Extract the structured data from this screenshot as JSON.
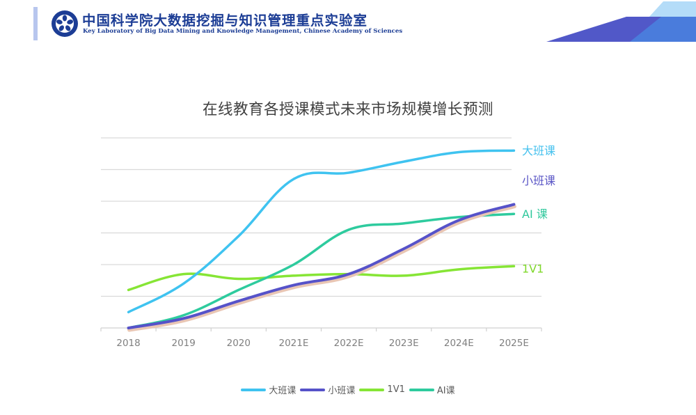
{
  "header": {
    "org_name_cn": "中国科学院大数据挖掘与知识管理重点实验室",
    "org_name_en": "Key Laboratory of Big Data Mining and Knowledge Management, Chinese Academy of Sciences",
    "logo_icon": "cas-seal-icon",
    "brand_color": "#1c3d95"
  },
  "chart_data": {
    "type": "line",
    "title": "在线教育各授课模式未来市场规模增长预测",
    "xlabel": "",
    "ylabel": "",
    "categories": [
      "2018",
      "2019",
      "2020",
      "2021E",
      "2022E",
      "2023E",
      "2024E",
      "2025E"
    ],
    "ylim": [
      0,
      6
    ],
    "grid": true,
    "y_tick_labels_shown": false,
    "legend_position": "bottom",
    "series": [
      {
        "name": "大班课",
        "end_label": "大班课",
        "color": "#3fc3f0",
        "label_color": "#45c1ee",
        "values": [
          0.5,
          1.4,
          2.9,
          4.7,
          4.9,
          5.25,
          5.55,
          5.6
        ]
      },
      {
        "name": "小班课",
        "end_label": "小班课",
        "color": "#5652c9",
        "label_color": "#5a56c6",
        "values": [
          0.0,
          0.3,
          0.85,
          1.35,
          1.7,
          2.5,
          3.4,
          3.9
        ]
      },
      {
        "name": "1V1",
        "end_label": "1V1",
        "color": "#86e535",
        "label_color": "#7fd82a",
        "values": [
          1.2,
          1.7,
          1.55,
          1.65,
          1.7,
          1.65,
          1.85,
          1.95
        ]
      },
      {
        "name": "AI课",
        "end_label": "AI 课",
        "color": "#2ecb9e",
        "label_color": "#2fc89c",
        "values": [
          0.0,
          0.4,
          1.2,
          2.0,
          3.1,
          3.3,
          3.5,
          3.6
        ]
      }
    ]
  }
}
